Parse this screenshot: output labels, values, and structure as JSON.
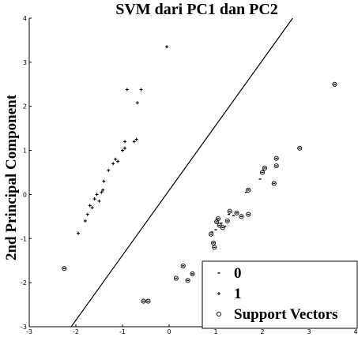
{
  "chart_data": {
    "type": "scatter",
    "title": "SVM dari PC1 dan PC2",
    "xlabel": "",
    "ylabel": "2nd Principal Component",
    "xlim": [
      -3,
      4
    ],
    "ylim": [
      -3,
      4
    ],
    "xticks": [
      "-3",
      "-2",
      "-1",
      "0",
      "1",
      "2",
      "3",
      "4"
    ],
    "yticks": [
      "-3",
      "-2",
      "-1",
      "0",
      "1",
      "2",
      "3",
      "4"
    ],
    "grid": false,
    "legend_position": "bottom-right",
    "series": [
      {
        "name": "0",
        "marker": "point",
        "points": [
          [
            0.15,
            -1.9
          ],
          [
            0.3,
            -1.62
          ],
          [
            0.4,
            -1.95
          ],
          [
            0.5,
            -1.8
          ],
          [
            0.9,
            -0.9
          ],
          [
            0.92,
            -0.85
          ],
          [
            0.95,
            -1.1
          ],
          [
            0.97,
            -1.2
          ],
          [
            1.0,
            -0.8
          ],
          [
            1.02,
            -0.62
          ],
          [
            1.05,
            -0.55
          ],
          [
            1.08,
            -0.7
          ],
          [
            1.12,
            -0.65
          ],
          [
            1.15,
            -0.75
          ],
          [
            1.2,
            -0.72
          ],
          [
            1.25,
            -0.6
          ],
          [
            1.28,
            -0.45
          ],
          [
            1.3,
            -0.38
          ],
          [
            1.38,
            -0.48
          ],
          [
            1.45,
            -0.42
          ],
          [
            1.55,
            -0.5
          ],
          [
            1.65,
            0.05
          ],
          [
            1.7,
            0.1
          ],
          [
            1.7,
            -0.45
          ],
          [
            1.95,
            0.35
          ],
          [
            2.0,
            0.5
          ],
          [
            2.02,
            0.55
          ],
          [
            2.05,
            0.6
          ],
          [
            2.25,
            0.25
          ],
          [
            2.3,
            0.65
          ],
          [
            2.3,
            0.82
          ],
          [
            2.8,
            1.05
          ],
          [
            3.55,
            2.5
          ],
          [
            -0.55,
            -2.42
          ],
          [
            -0.45,
            -2.42
          ],
          [
            -2.25,
            -1.68
          ]
        ]
      },
      {
        "name": "1",
        "marker": "plus",
        "points": [
          [
            -1.95,
            -0.88
          ],
          [
            -1.8,
            -0.6
          ],
          [
            -1.75,
            -0.45
          ],
          [
            -1.7,
            -0.25
          ],
          [
            -1.65,
            -0.3
          ],
          [
            -1.6,
            -0.1
          ],
          [
            -1.55,
            0.0
          ],
          [
            -1.5,
            -0.15
          ],
          [
            -1.45,
            0.05
          ],
          [
            -1.42,
            0.1
          ],
          [
            -1.4,
            0.3
          ],
          [
            -1.3,
            0.55
          ],
          [
            -1.2,
            0.7
          ],
          [
            -1.15,
            0.8
          ],
          [
            -1.1,
            0.75
          ],
          [
            -1.0,
            1.0
          ],
          [
            -0.95,
            1.05
          ],
          [
            -0.95,
            1.2
          ],
          [
            -0.9,
            2.38
          ],
          [
            -0.75,
            1.2
          ],
          [
            -0.7,
            1.25
          ],
          [
            -0.68,
            2.08
          ],
          [
            -0.6,
            2.38
          ],
          [
            -0.05,
            3.35
          ]
        ]
      },
      {
        "name": "Support Vectors",
        "marker": "circle",
        "points": [
          [
            -2.25,
            -1.68
          ],
          [
            -0.55,
            -2.42
          ],
          [
            -0.45,
            -2.42
          ],
          [
            0.15,
            -1.9
          ],
          [
            0.3,
            -1.62
          ],
          [
            0.4,
            -1.95
          ],
          [
            0.5,
            -1.8
          ],
          [
            0.9,
            -0.9
          ],
          [
            0.95,
            -1.1
          ],
          [
            0.97,
            -1.2
          ],
          [
            1.02,
            -0.62
          ],
          [
            1.05,
            -0.55
          ],
          [
            1.08,
            -0.7
          ],
          [
            1.15,
            -0.75
          ],
          [
            1.25,
            -0.6
          ],
          [
            1.3,
            -0.38
          ],
          [
            1.45,
            -0.42
          ],
          [
            1.55,
            -0.5
          ],
          [
            1.7,
            0.1
          ],
          [
            1.7,
            -0.45
          ],
          [
            2.0,
            0.5
          ],
          [
            2.05,
            0.6
          ],
          [
            2.25,
            0.25
          ],
          [
            2.3,
            0.65
          ],
          [
            2.3,
            0.82
          ],
          [
            2.8,
            1.05
          ],
          [
            3.55,
            2.5
          ]
        ]
      }
    ],
    "decision_boundary": [
      [
        -2.1,
        -3.0
      ],
      [
        2.65,
        4.0
      ]
    ]
  }
}
